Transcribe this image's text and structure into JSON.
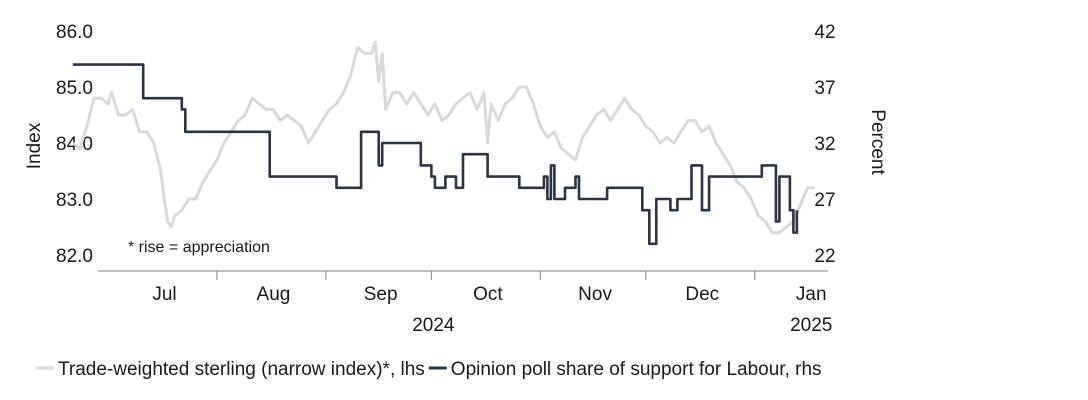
{
  "chart_data": {
    "type": "line",
    "title": "",
    "annotation": "* rise = appreciation",
    "x_axis": {
      "months": [
        "Jul",
        "Aug",
        "Sep",
        "Oct",
        "Nov",
        "Dec",
        "Jan"
      ],
      "years": [
        {
          "label": "2024",
          "month_index": 2.5
        },
        {
          "label": "2025",
          "month_index": 6
        }
      ],
      "range": [
        "2024-06-21",
        "2025-01-23"
      ]
    },
    "y_left": {
      "label": "Index",
      "min": 82.0,
      "max": 86.0,
      "ticks": [
        "82.0",
        "83.0",
        "84.0",
        "85.0",
        "86.0"
      ]
    },
    "y_right": {
      "label": "Percent",
      "min": 22,
      "max": 42,
      "ticks": [
        "22",
        "27",
        "32",
        "37",
        "42"
      ]
    },
    "legend_position": "bottom",
    "grid": false,
    "series": [
      {
        "name": "Trade-weighted sterling (narrow index)*, lhs",
        "axis": "left",
        "color": "#d9d9d6",
        "points": [
          [
            -10,
            84.0
          ],
          [
            -8,
            83.9
          ],
          [
            -6,
            84.3
          ],
          [
            -4,
            84.8
          ],
          [
            -2,
            84.8
          ],
          [
            0,
            84.7
          ],
          [
            1,
            84.9
          ],
          [
            3,
            84.5
          ],
          [
            5,
            84.5
          ],
          [
            7,
            84.6
          ],
          [
            9,
            84.2
          ],
          [
            11,
            84.2
          ],
          [
            13,
            84.0
          ],
          [
            15,
            83.5
          ],
          [
            16,
            83.0
          ],
          [
            17,
            82.6
          ],
          [
            18,
            82.5
          ],
          [
            19,
            82.7
          ],
          [
            21,
            82.8
          ],
          [
            23,
            83.0
          ],
          [
            25,
            83.0
          ],
          [
            27,
            83.3
          ],
          [
            29,
            83.5
          ],
          [
            31,
            83.7
          ],
          [
            33,
            84.0
          ],
          [
            35,
            84.2
          ],
          [
            37,
            84.4
          ],
          [
            39,
            84.5
          ],
          [
            41,
            84.8
          ],
          [
            43,
            84.7
          ],
          [
            45,
            84.6
          ],
          [
            47,
            84.6
          ],
          [
            49,
            84.4
          ],
          [
            51,
            84.5
          ],
          [
            53,
            84.4
          ],
          [
            55,
            84.3
          ],
          [
            57,
            84.0
          ],
          [
            59,
            84.2
          ],
          [
            61,
            84.4
          ],
          [
            63,
            84.6
          ],
          [
            65,
            84.7
          ],
          [
            67,
            84.9
          ],
          [
            69,
            85.2
          ],
          [
            71,
            85.7
          ],
          [
            73,
            85.6
          ],
          [
            75,
            85.6
          ],
          [
            76,
            85.8
          ],
          [
            77,
            85.1
          ],
          [
            78,
            85.6
          ],
          [
            79,
            84.6
          ],
          [
            81,
            84.9
          ],
          [
            83,
            84.9
          ],
          [
            85,
            84.7
          ],
          [
            87,
            84.9
          ],
          [
            89,
            84.7
          ],
          [
            91,
            84.5
          ],
          [
            93,
            84.7
          ],
          [
            95,
            84.4
          ],
          [
            97,
            84.5
          ],
          [
            99,
            84.7
          ],
          [
            101,
            84.8
          ],
          [
            103,
            84.9
          ],
          [
            105,
            84.6
          ],
          [
            107,
            84.9
          ],
          [
            108,
            84.0
          ],
          [
            109,
            84.7
          ],
          [
            111,
            84.4
          ],
          [
            113,
            84.7
          ],
          [
            115,
            84.8
          ],
          [
            117,
            85.0
          ],
          [
            119,
            85.0
          ],
          [
            121,
            84.7
          ],
          [
            123,
            84.3
          ],
          [
            125,
            84.1
          ],
          [
            127,
            84.2
          ],
          [
            129,
            83.9
          ],
          [
            131,
            83.8
          ],
          [
            133,
            83.7
          ],
          [
            135,
            84.1
          ],
          [
            137,
            84.3
          ],
          [
            139,
            84.5
          ],
          [
            141,
            84.6
          ],
          [
            143,
            84.4
          ],
          [
            145,
            84.6
          ],
          [
            147,
            84.8
          ],
          [
            149,
            84.6
          ],
          [
            151,
            84.5
          ],
          [
            153,
            84.3
          ],
          [
            155,
            84.2
          ],
          [
            157,
            84.0
          ],
          [
            159,
            84.1
          ],
          [
            161,
            84.0
          ],
          [
            163,
            84.2
          ],
          [
            165,
            84.4
          ],
          [
            167,
            84.4
          ],
          [
            169,
            84.2
          ],
          [
            171,
            84.3
          ],
          [
            173,
            84.0
          ],
          [
            175,
            83.8
          ],
          [
            177,
            83.6
          ],
          [
            179,
            83.3
          ],
          [
            181,
            83.2
          ],
          [
            183,
            83.0
          ],
          [
            185,
            82.7
          ],
          [
            187,
            82.6
          ],
          [
            189,
            82.4
          ],
          [
            191,
            82.4
          ],
          [
            193,
            82.5
          ],
          [
            195,
            82.6
          ],
          [
            197,
            82.9
          ],
          [
            199,
            83.2
          ],
          [
            201,
            83.2
          ]
        ]
      },
      {
        "name": "Opinion poll share of support for Labour, rhs",
        "axis": "right",
        "color": "#2b3445",
        "points": [
          [
            -10,
            39
          ],
          [
            10,
            39
          ],
          [
            10,
            36
          ],
          [
            21,
            36
          ],
          [
            21,
            35
          ],
          [
            22,
            35
          ],
          [
            22,
            33
          ],
          [
            46,
            33
          ],
          [
            46,
            29
          ],
          [
            65,
            29
          ],
          [
            65,
            28
          ],
          [
            72,
            28
          ],
          [
            72,
            33
          ],
          [
            77,
            33
          ],
          [
            77,
            30
          ],
          [
            78,
            30
          ],
          [
            78,
            32
          ],
          [
            89,
            32
          ],
          [
            89,
            30
          ],
          [
            92,
            30
          ],
          [
            92,
            29
          ],
          [
            93,
            29
          ],
          [
            93,
            28
          ],
          [
            96,
            28
          ],
          [
            96,
            29
          ],
          [
            99,
            29
          ],
          [
            99,
            28
          ],
          [
            101,
            28
          ],
          [
            101,
            31
          ],
          [
            108,
            31
          ],
          [
            108,
            29
          ],
          [
            117,
            29
          ],
          [
            117,
            28
          ],
          [
            124,
            28
          ],
          [
            124,
            29
          ],
          [
            125,
            29
          ],
          [
            125,
            27
          ],
          [
            126,
            27
          ],
          [
            126,
            30
          ],
          [
            127,
            30
          ],
          [
            127,
            27
          ],
          [
            130,
            27
          ],
          [
            130,
            28
          ],
          [
            133,
            28
          ],
          [
            133,
            29
          ],
          [
            134,
            29
          ],
          [
            134,
            27
          ],
          [
            142,
            27
          ],
          [
            142,
            28
          ],
          [
            152,
            28
          ],
          [
            152,
            26
          ],
          [
            154,
            26
          ],
          [
            154,
            23
          ],
          [
            156,
            23
          ],
          [
            156,
            27
          ],
          [
            160,
            27
          ],
          [
            160,
            26
          ],
          [
            162,
            26
          ],
          [
            162,
            27
          ],
          [
            166,
            27
          ],
          [
            166,
            30
          ],
          [
            169,
            30
          ],
          [
            169,
            26
          ],
          [
            171,
            26
          ],
          [
            171,
            29
          ],
          [
            186,
            29
          ],
          [
            186,
            30
          ],
          [
            190,
            30
          ],
          [
            190,
            25
          ],
          [
            191,
            25
          ],
          [
            191,
            29
          ],
          [
            194,
            29
          ],
          [
            194,
            26
          ],
          [
            195,
            26
          ],
          [
            195,
            24
          ],
          [
            196,
            24
          ],
          [
            196,
            26
          ]
        ]
      }
    ]
  }
}
